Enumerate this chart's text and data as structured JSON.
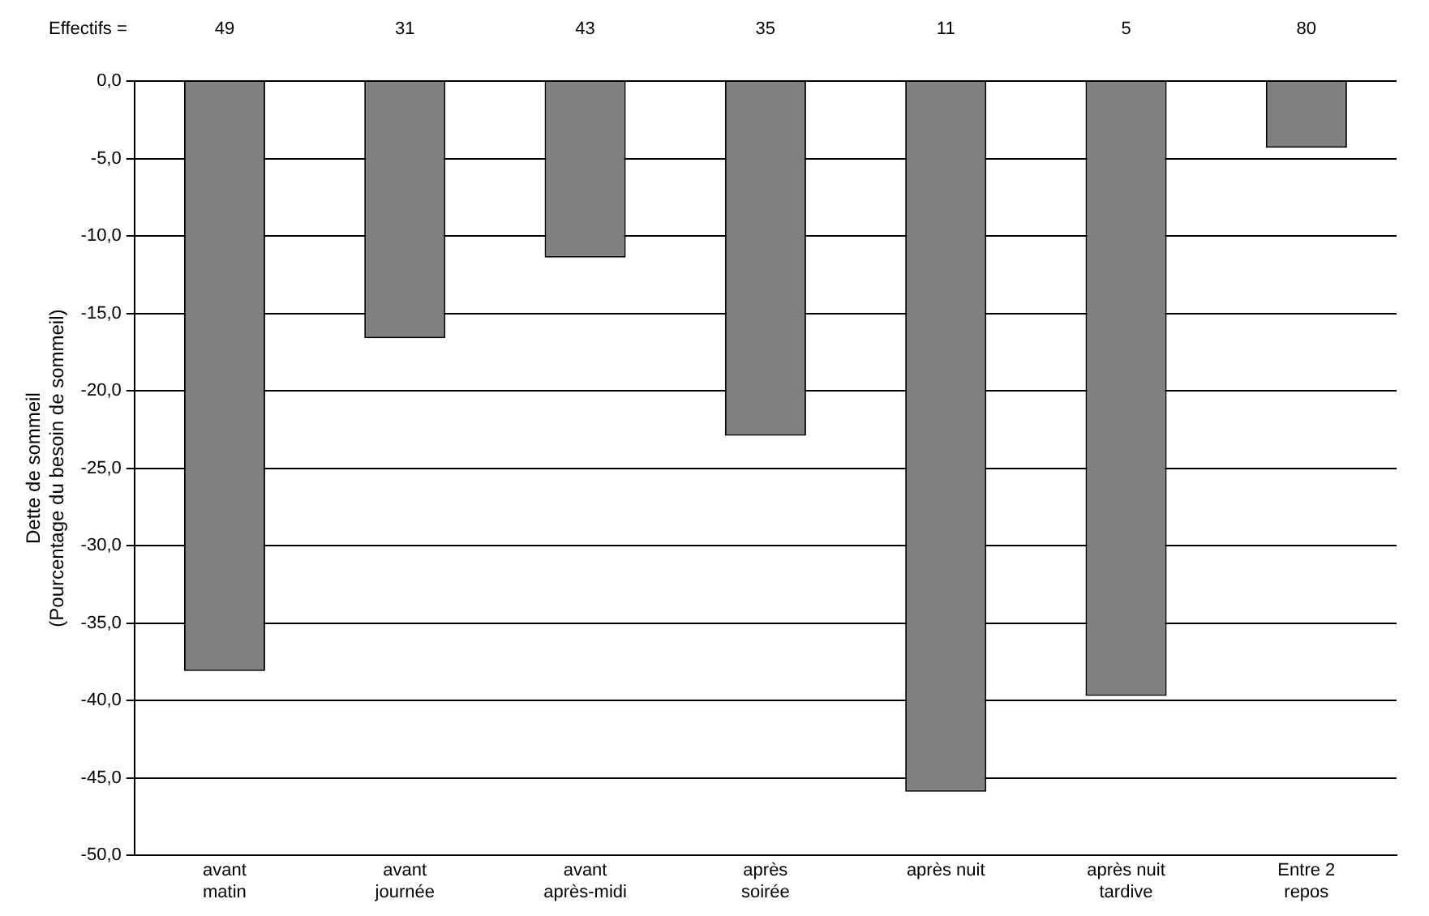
{
  "chart_data": {
    "type": "bar",
    "ylabel": "Dette de sommeil\n(Pourcentage du besoin de sommeil)",
    "categories": [
      "avant\nmatin",
      "avant\njournée",
      "avant\naprès-midi",
      "après\nsoirée",
      "après nuit",
      "après nuit\ntardive",
      "Entre 2\nrepos"
    ],
    "values": [
      -38.1,
      -16.6,
      -11.4,
      -22.9,
      -45.9,
      -39.7,
      -4.3
    ],
    "color": "#808080",
    "ylim": [
      -50,
      0
    ],
    "yticks": [
      {
        "value": 0,
        "label": "0,0"
      },
      {
        "value": -5,
        "label": "-5,0"
      },
      {
        "value": -10,
        "label": "-10,0"
      },
      {
        "value": -15,
        "label": "-15,0"
      },
      {
        "value": -20,
        "label": "-20,0"
      },
      {
        "value": -25,
        "label": "-25,0"
      },
      {
        "value": -30,
        "label": "-30,0"
      },
      {
        "value": -35,
        "label": "-35,0"
      },
      {
        "value": -40,
        "label": "-40,0"
      },
      {
        "value": -45,
        "label": "-45,0"
      },
      {
        "value": -50,
        "label": "-50,0"
      }
    ],
    "grid": "y",
    "annotations": [
      "Effectifs =",
      "49",
      "31",
      "43",
      "35",
      "11",
      "5",
      "80"
    ]
  }
}
